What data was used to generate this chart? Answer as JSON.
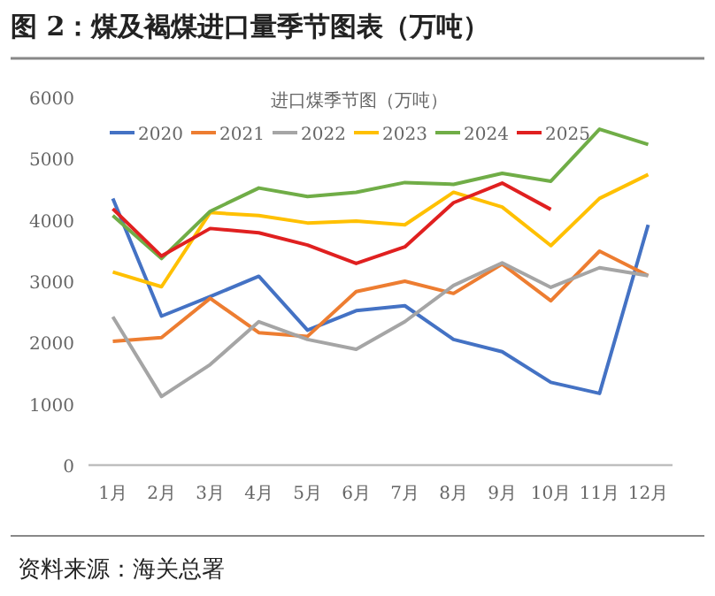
{
  "chart_data": {
    "type": "line",
    "title": "图 2：煤及褐煤进口量季节图表（万吨）",
    "subtitle": "进口煤季节图（万吨）",
    "annotations": [
      "资料来源：海关总署"
    ],
    "categories": [
      "1月",
      "2月",
      "3月",
      "4月",
      "5月",
      "6月",
      "7月",
      "8月",
      "9月",
      "10月",
      "11月",
      "12月"
    ],
    "ylim": [
      0,
      6000
    ],
    "yticks": [
      0,
      1000,
      2000,
      3000,
      4000,
      5000,
      6000
    ],
    "grid": false,
    "legend": "top",
    "marker": "none",
    "line_style": "solid",
    "series": [
      {
        "name": "2020",
        "color": "#4472c4",
        "values": [
          4350,
          2430,
          2750,
          3080,
          2200,
          2520,
          2600,
          2050,
          1850,
          1350,
          1170,
          3920
        ]
      },
      {
        "name": "2021",
        "color": "#ed7d31",
        "values": [
          2020,
          2080,
          2720,
          2160,
          2100,
          2830,
          3000,
          2800,
          3280,
          2680,
          3490,
          3090
        ]
      },
      {
        "name": "2022",
        "color": "#a5a5a5",
        "values": [
          2420,
          1120,
          1640,
          2340,
          2050,
          1890,
          2340,
          2930,
          3300,
          2900,
          3220,
          3090
        ]
      },
      {
        "name": "2023",
        "color": "#ffc000",
        "values": [
          3150,
          2910,
          4120,
          4070,
          3950,
          3980,
          3920,
          4450,
          4210,
          3580,
          4350,
          4740
        ]
      },
      {
        "name": "2024",
        "color": "#70ad47",
        "values": [
          4070,
          3370,
          4140,
          4520,
          4380,
          4450,
          4610,
          4580,
          4760,
          4630,
          5480,
          5230
        ]
      },
      {
        "name": "2025",
        "color": "#e02020",
        "values": [
          4180,
          3410,
          3860,
          3790,
          3590,
          3290,
          3560,
          4280,
          4600,
          4170,
          null,
          null
        ]
      }
    ]
  }
}
